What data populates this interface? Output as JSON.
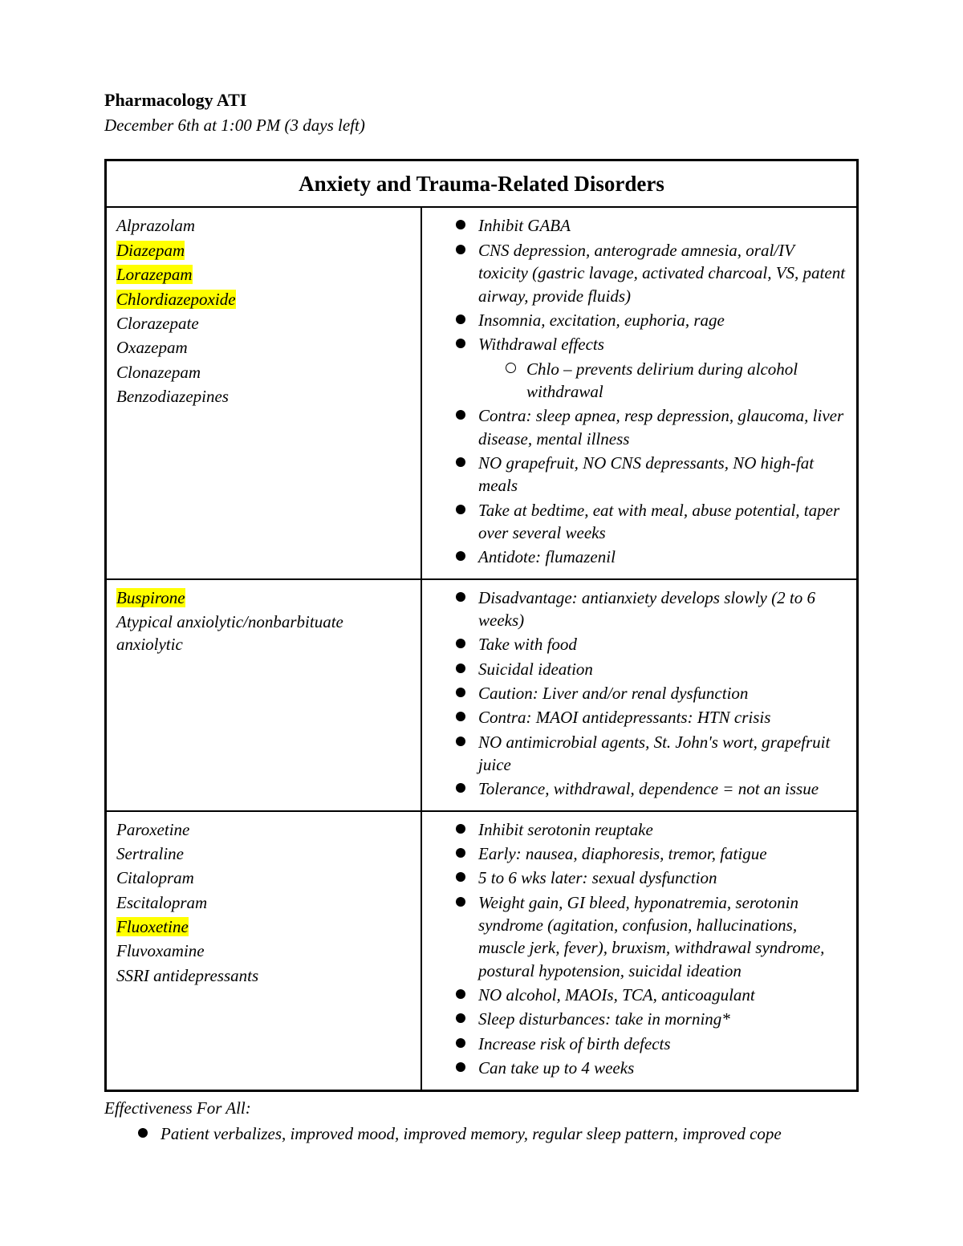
{
  "doc": {
    "title": "Pharmacology ATI",
    "subtitle": "December 6th at 1:00 PM (3 days left)"
  },
  "section_header": "Anxiety and Trauma-Related Disorders",
  "rows": [
    {
      "drugs": [
        {
          "name": "Alprazolam",
          "highlight": false
        },
        {
          "name": "Diazepam",
          "highlight": true
        },
        {
          "name": "Lorazepam",
          "highlight": true
        },
        {
          "name": "Chlordiazepoxide",
          "highlight": true
        },
        {
          "name": "Clorazepate",
          "highlight": false
        },
        {
          "name": "Oxazepam",
          "highlight": false
        },
        {
          "name": "Clonazepam",
          "highlight": false
        },
        {
          "name": "Benzodiazepines",
          "highlight": false
        }
      ],
      "bullets": [
        {
          "text": "Inhibit GABA"
        },
        {
          "text": "CNS depression, anterograde amnesia, oral/IV toxicity (gastric lavage, activated charcoal, VS, patent airway, provide fluids)"
        },
        {
          "text": "Insomnia, excitation, euphoria, rage"
        },
        {
          "text": "Withdrawal effects",
          "sub": [
            "Chlo – prevents delirium during alcohol withdrawal"
          ]
        },
        {
          "text": "Contra: sleep apnea, resp depression, glaucoma, liver disease, mental illness"
        },
        {
          "text": "NO grapefruit, NO CNS depressants, NO high-fat meals"
        },
        {
          "text": "Take at bedtime, eat with meal, abuse potential, taper over several weeks"
        },
        {
          "text": "Antidote: flumazenil"
        }
      ]
    },
    {
      "drugs": [
        {
          "name": "Buspirone",
          "highlight": true
        },
        {
          "name": "Atypical anxiolytic/nonbarbituate anxiolytic",
          "highlight": false
        }
      ],
      "bullets": [
        {
          "text": "Disadvantage: antianxiety develops slowly (2 to 6 weeks)"
        },
        {
          "text": "Take with food"
        },
        {
          "text": "Suicidal ideation"
        },
        {
          "text": "Caution: Liver and/or renal dysfunction"
        },
        {
          "text": "Contra: MAOI antidepressants: HTN crisis"
        },
        {
          "text": "NO antimicrobial agents, St. John's wort, grapefruit juice"
        },
        {
          "text": "Tolerance, withdrawal, dependence = not an issue"
        }
      ]
    },
    {
      "drugs": [
        {
          "name": "Paroxetine",
          "highlight": false
        },
        {
          "name": "Sertraline",
          "highlight": false
        },
        {
          "name": "Citalopram",
          "highlight": false
        },
        {
          "name": "Escitalopram",
          "highlight": false
        },
        {
          "name": "Fluoxetine",
          "highlight": true
        },
        {
          "name": "Fluvoxamine",
          "highlight": false
        },
        {
          "name": "SSRI antidepressants",
          "highlight": false
        }
      ],
      "bullets": [
        {
          "text": "Inhibit serotonin reuptake"
        },
        {
          "text": "Early: nausea, diaphoresis, tremor, fatigue"
        },
        {
          "text": "5 to 6 wks later: sexual dysfunction"
        },
        {
          "text": "Weight gain, GI bleed, hyponatremia, serotonin syndrome (agitation, confusion, hallucinations, muscle jerk, fever), bruxism, withdrawal syndrome, postural hypotension, suicidal ideation"
        },
        {
          "text": "NO alcohol, MAOIs, TCA, anticoagulant"
        },
        {
          "text": "Sleep disturbances: take in morning*"
        },
        {
          "text": "Increase risk of birth defects"
        },
        {
          "text": "Can take up to 4 weeks"
        }
      ]
    }
  ],
  "footer": {
    "title": "Effectiveness For All:",
    "bullet": "Patient verbalizes, improved mood, improved memory, regular sleep pattern, improved cope"
  },
  "colors": {
    "highlight": "#ffff00",
    "text": "#000000",
    "background": "#ffffff",
    "border": "#000000"
  }
}
